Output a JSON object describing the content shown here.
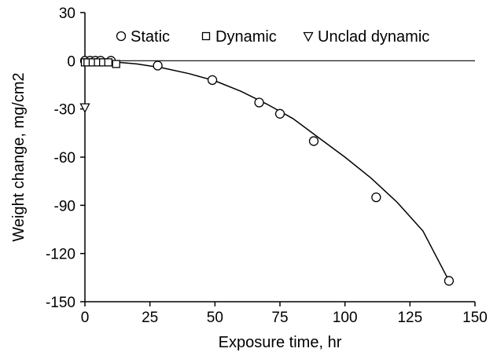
{
  "chart_data": {
    "type": "scatter",
    "title": "",
    "xlabel": "Exposure time, hr",
    "ylabel": "Weight change, mg/cm2",
    "xlim": [
      0,
      150
    ],
    "ylim": [
      -150,
      30
    ],
    "x_ticks": [
      0,
      25,
      50,
      75,
      100,
      125,
      150
    ],
    "y_ticks": [
      30,
      0,
      -30,
      -60,
      -90,
      -120,
      -150
    ],
    "grid": false,
    "legend_position": "top",
    "reference_line_y": 0,
    "series": [
      {
        "name": "Static",
        "marker": "circle",
        "x": [
          0,
          2,
          4,
          6,
          10,
          28,
          49,
          67,
          75,
          88,
          112,
          140
        ],
        "y": [
          0,
          0,
          0,
          0,
          0,
          -3,
          -12,
          -26,
          -33,
          -50,
          -85,
          -137
        ]
      },
      {
        "name": "Dynamic",
        "marker": "square",
        "x": [
          0,
          1,
          3,
          5,
          7,
          9,
          12
        ],
        "y": [
          -1,
          -1,
          -1,
          -1,
          -1,
          -1,
          -2
        ]
      },
      {
        "name": "Unclad dynamic",
        "marker": "triangle-down",
        "x": [
          0
        ],
        "y": [
          -29
        ]
      }
    ],
    "fit_curve": {
      "x": [
        0,
        10,
        20,
        30,
        40,
        50,
        60,
        70,
        80,
        90,
        100,
        110,
        120,
        130,
        140
      ],
      "y": [
        0,
        -0.6,
        -2,
        -4.5,
        -8,
        -12.5,
        -19,
        -27,
        -36,
        -48,
        -60,
        -73,
        -88,
        -106,
        -137
      ]
    }
  }
}
